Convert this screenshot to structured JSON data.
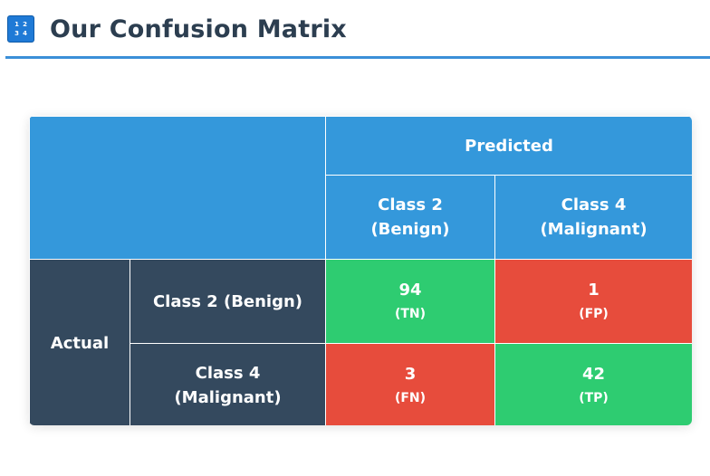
{
  "header": {
    "icon": "input-numbers-icon",
    "icon_digits": [
      "1",
      "2",
      "3",
      "4"
    ],
    "title": "Our Confusion Matrix"
  },
  "colors": {
    "predicted_header": "#3498db",
    "actual_header": "#34495e",
    "correct_cell": "#2ecc71",
    "incorrect_cell": "#e74c3c",
    "title_text": "#2c3e50",
    "title_rule": "#3b8fd8"
  },
  "matrix": {
    "predicted_label": "Predicted",
    "actual_label": "Actual",
    "predicted_classes": [
      {
        "line1": "Class 2",
        "line2": "(Benign)"
      },
      {
        "line1": "Class 4",
        "line2": "(Malignant)"
      }
    ],
    "actual_classes": [
      {
        "line1": "Class 2 (Benign)",
        "line2": ""
      },
      {
        "line1": "Class 4",
        "line2": "(Malignant)"
      }
    ],
    "rows": [
      [
        {
          "value": "94",
          "abbr": "(TN)",
          "correct": true
        },
        {
          "value": "1",
          "abbr": "(FP)",
          "correct": false
        }
      ],
      [
        {
          "value": "3",
          "abbr": "(FN)",
          "correct": false
        },
        {
          "value": "42",
          "abbr": "(TP)",
          "correct": true
        }
      ]
    ]
  }
}
